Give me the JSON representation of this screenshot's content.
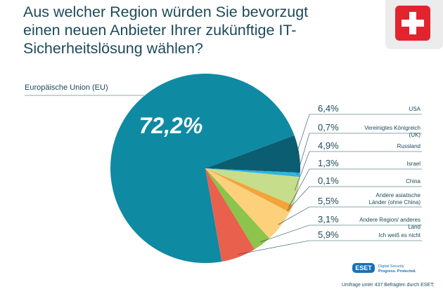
{
  "chart_data": {
    "type": "pie",
    "title": "Aus welcher Region würden Sie bevorzugt einen neuen Anbieter Ihrer zukünftige IT-Sicherheitslösung wählen?",
    "categories": [
      "Europäische Union (EU)",
      "USA",
      "Vereinigtes Königreich (UK)",
      "Russland",
      "Israel",
      "China",
      "Andere asiatische Länder (ohne China)",
      "Andere Region/ anderes Land",
      "Ich weiß es nicht"
    ],
    "values": [
      72.2,
      6.4,
      0.7,
      4.9,
      1.3,
      0.1,
      5.5,
      3.1,
      5.9
    ],
    "value_labels": [
      "72,2%",
      "6,4%",
      "0,7%",
      "4,9%",
      "1,3%",
      "0,1%",
      "5,5%",
      "3,1%",
      "5,9%"
    ],
    "colors": [
      "#0f8aa3",
      "#0b5d72",
      "#2cb6e2",
      "#c6dd8c",
      "#f2a33a",
      "#f6c444",
      "#fdd07c",
      "#8cc44c",
      "#e9614d"
    ]
  },
  "branding": {
    "logo": "ESET",
    "tagline_1": "Digital Security",
    "tagline_2": "Progress. Protected.",
    "footnote": "Umfrage unter 437 Befragten durch ESET;"
  }
}
